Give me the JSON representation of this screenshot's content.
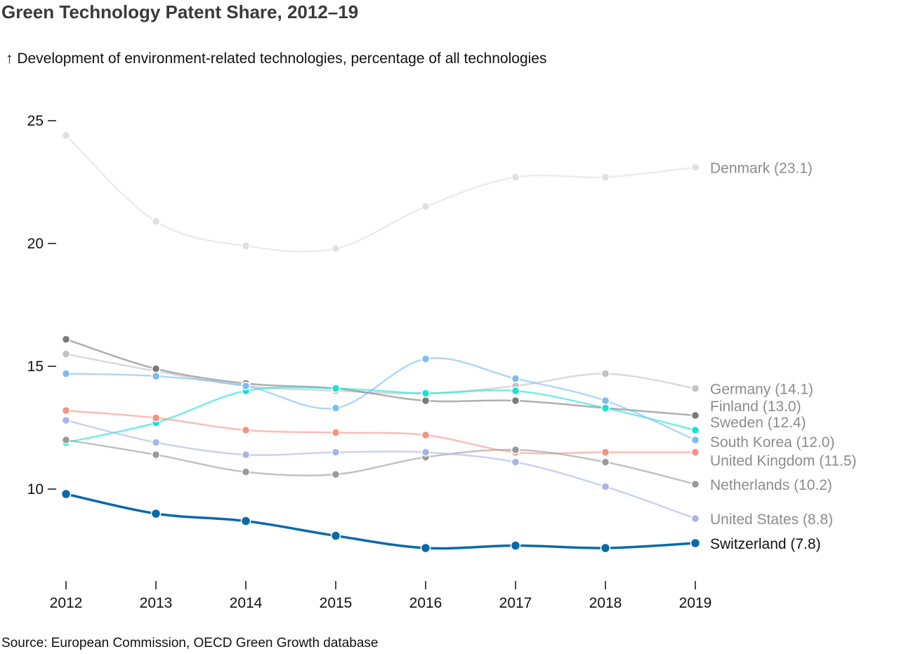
{
  "title": "Green Technology Patent Share, 2012–19",
  "subtitle": "↑ Development of environment-related technologies, percentage of all technologies",
  "source": "Source: European Commission, OECD Green Growth database",
  "chart_data": {
    "type": "line",
    "x": [
      2012,
      2013,
      2014,
      2015,
      2016,
      2017,
      2018,
      2019
    ],
    "ylim": [
      6.2,
      26.2
    ],
    "yticks": [
      10,
      15,
      20,
      25
    ],
    "grid": false,
    "legend": "inline labels at line ends",
    "series": [
      {
        "name": "Denmark",
        "end_label": "Denmark (23.1)",
        "color": "#e0e0e0",
        "label_color": "#8c8c8c",
        "highlight": false,
        "values": [
          24.4,
          20.9,
          19.9,
          19.8,
          21.5,
          22.7,
          22.7,
          23.1
        ]
      },
      {
        "name": "Germany",
        "end_label": "Germany (14.1)",
        "color": "#c2c2c2",
        "label_color": "#8c8c8c",
        "highlight": false,
        "values": [
          15.5,
          14.8,
          14.2,
          14.0,
          13.9,
          14.2,
          14.7,
          14.1
        ]
      },
      {
        "name": "Finland",
        "end_label": "Finland (13.0)",
        "color": "#7a7a7a",
        "label_color": "#8c8c8c",
        "highlight": false,
        "values": [
          16.1,
          14.9,
          14.3,
          14.1,
          13.6,
          13.6,
          13.3,
          13.0
        ]
      },
      {
        "name": "Sweden",
        "end_label": "Sweden (12.4)",
        "color": "#17e3d0",
        "label_color": "#8c8c8c",
        "highlight": false,
        "values": [
          11.9,
          12.7,
          14.0,
          14.1,
          13.9,
          14.0,
          13.3,
          12.4
        ]
      },
      {
        "name": "South Korea",
        "end_label": "South Korea (12.0)",
        "color": "#7dbdf0",
        "label_color": "#8c8c8c",
        "highlight": false,
        "values": [
          14.7,
          14.6,
          14.2,
          13.3,
          15.3,
          14.5,
          13.6,
          12.0
        ]
      },
      {
        "name": "United Kingdom",
        "end_label": "United Kingdom (11.5)",
        "color": "#f59382",
        "label_color": "#8c8c8c",
        "highlight": false,
        "values": [
          13.2,
          12.9,
          12.4,
          12.3,
          12.2,
          11.5,
          11.5,
          11.5
        ]
      },
      {
        "name": "Netherlands",
        "end_label": "Netherlands (10.2)",
        "color": "#9a9a9a",
        "label_color": "#8c8c8c",
        "highlight": false,
        "values": [
          12.0,
          11.4,
          10.7,
          10.6,
          11.3,
          11.6,
          11.1,
          10.2
        ]
      },
      {
        "name": "United States",
        "end_label": "United States (8.8)",
        "color": "#a8b4e6",
        "label_color": "#8c8c8c",
        "highlight": false,
        "values": [
          12.8,
          11.9,
          11.4,
          11.5,
          11.5,
          11.1,
          10.1,
          8.8
        ]
      },
      {
        "name": "Switzerland",
        "end_label": "Switzerland (7.8)",
        "color": "#0a6aa8",
        "label_color": "#111111",
        "highlight": true,
        "values": [
          9.8,
          9.0,
          8.7,
          8.1,
          7.6,
          7.7,
          7.6,
          7.8
        ]
      }
    ]
  }
}
